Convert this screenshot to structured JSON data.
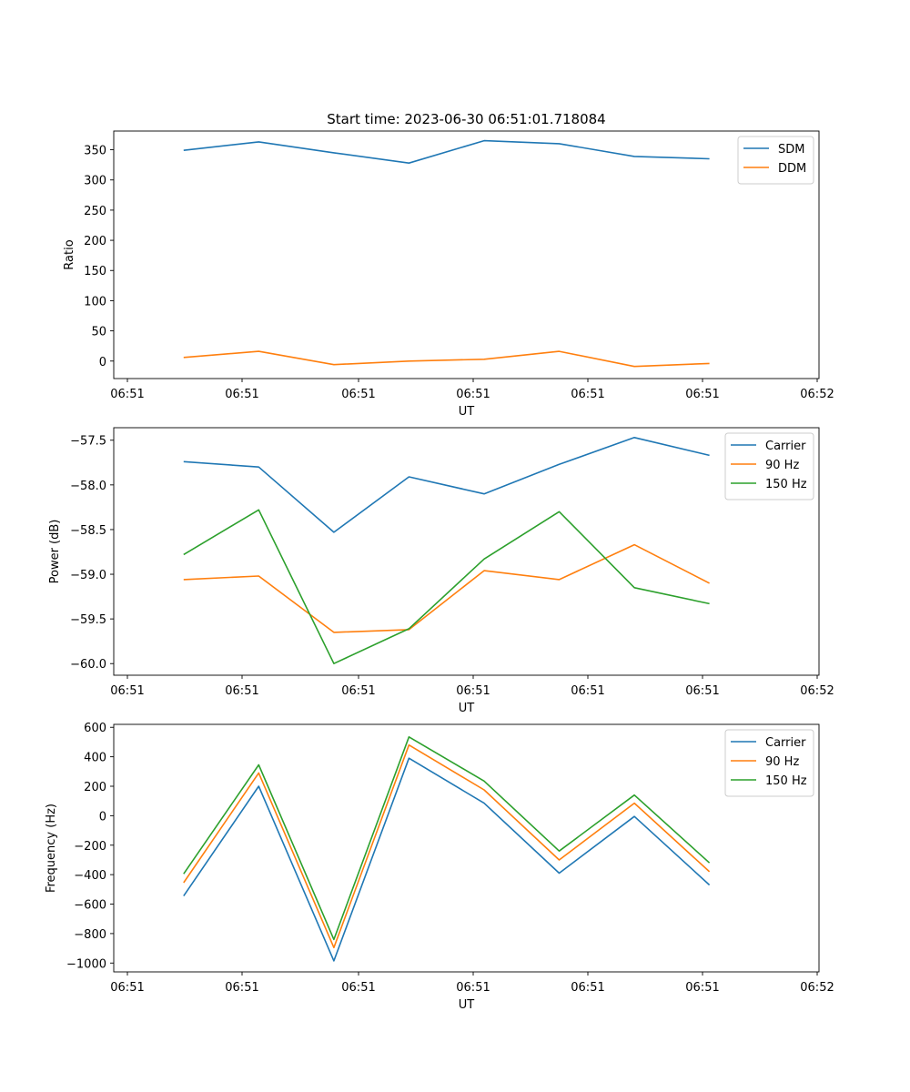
{
  "figure_title": "Start time: 2023-06-30 06:51:01.718084",
  "colors": {
    "blue": "#1f77b4",
    "orange": "#ff7f0e",
    "green": "#2ca02c"
  },
  "x_tick_labels": [
    "06:51",
    "06:51",
    "06:51",
    "06:51",
    "06:51",
    "06:51",
    "06:51"
  ],
  "x_last_tick_label": "06:52",
  "chart_data": [
    {
      "type": "line",
      "xlabel": "UT",
      "ylabel": "Ratio",
      "ylim": [
        -29,
        381
      ],
      "yticks": [
        0,
        50,
        100,
        150,
        200,
        250,
        300,
        350
      ],
      "ytick_labels": [
        "0",
        "50",
        "100",
        "150",
        "200",
        "250",
        "300",
        "350"
      ],
      "legend_position": "top-right",
      "x": [
        0,
        1,
        2,
        3,
        4,
        5,
        6,
        7
      ],
      "series": [
        {
          "name": "SDM",
          "color": "#1f77b4",
          "values": [
            349,
            363,
            345,
            328,
            365,
            360,
            339,
            335
          ]
        },
        {
          "name": "DDM",
          "color": "#ff7f0e",
          "values": [
            6,
            16,
            -6,
            0,
            3,
            16,
            -9,
            -4
          ]
        }
      ]
    },
    {
      "type": "line",
      "xlabel": "UT",
      "ylabel": "Power (dB)",
      "ylim": [
        -60.13,
        -57.36
      ],
      "yticks": [
        -60.0,
        -59.5,
        -59.0,
        -58.5,
        -58.0,
        -57.5
      ],
      "ytick_labels": [
        "−60.0",
        "−59.5",
        "−59.0",
        "−58.5",
        "−58.0",
        "−57.5"
      ],
      "legend_position": "top-right",
      "x": [
        0,
        1,
        2,
        3,
        4,
        5,
        6,
        7
      ],
      "series": [
        {
          "name": "Carrier",
          "color": "#1f77b4",
          "values": [
            -57.74,
            -57.8,
            -58.53,
            -57.91,
            -58.1,
            -57.77,
            -57.47,
            -57.67
          ]
        },
        {
          "name": "90 Hz",
          "color": "#ff7f0e",
          "values": [
            -59.06,
            -59.02,
            -59.65,
            -59.62,
            -58.96,
            -59.06,
            -58.67,
            -59.1
          ]
        },
        {
          "name": "150 Hz",
          "color": "#2ca02c",
          "values": [
            -58.78,
            -58.28,
            -60.0,
            -59.61,
            -58.83,
            -58.3,
            -59.15,
            -59.33
          ]
        }
      ]
    },
    {
      "type": "line",
      "xlabel": "UT",
      "ylabel": "Frequency (Hz)",
      "ylim": [
        -1060,
        620
      ],
      "yticks": [
        -1000,
        -800,
        -600,
        -400,
        -200,
        0,
        200,
        400,
        600
      ],
      "ytick_labels": [
        "−1000",
        "−800",
        "−600",
        "−400",
        "−200",
        "0",
        "200",
        "400",
        "600"
      ],
      "legend_position": "top-right",
      "x": [
        0,
        1,
        2,
        3,
        4,
        5,
        6,
        7
      ],
      "series": [
        {
          "name": "Carrier",
          "color": "#1f77b4",
          "values": [
            -545,
            200,
            -985,
            390,
            85,
            -390,
            -5,
            -470
          ]
        },
        {
          "name": "90 Hz",
          "color": "#ff7f0e",
          "values": [
            -455,
            290,
            -895,
            480,
            175,
            -300,
            85,
            -380
          ]
        },
        {
          "name": "150 Hz",
          "color": "#2ca02c",
          "values": [
            -395,
            345,
            -840,
            535,
            235,
            -240,
            140,
            -320
          ]
        }
      ]
    }
  ]
}
